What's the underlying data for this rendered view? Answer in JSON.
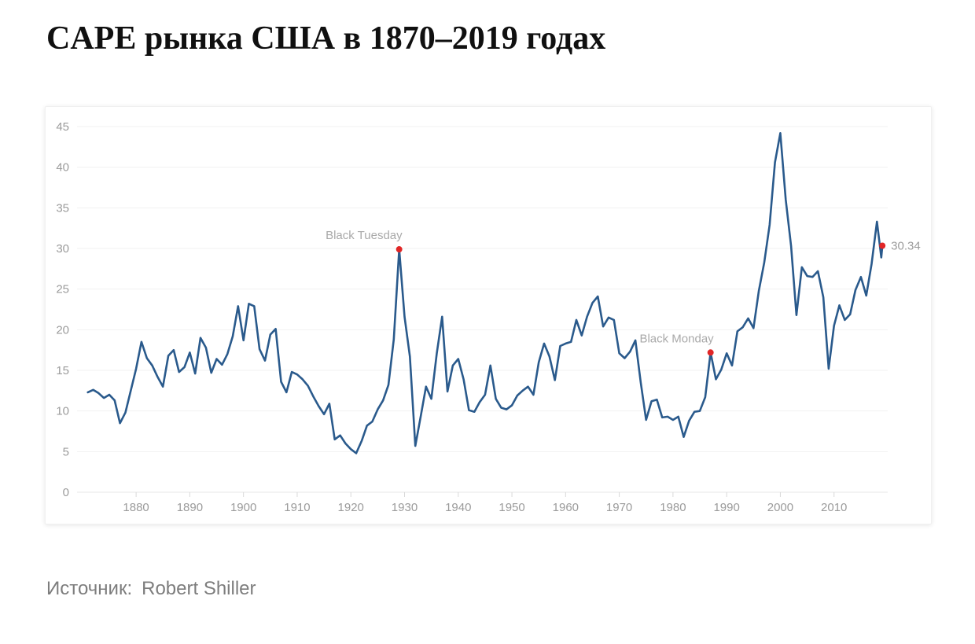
{
  "page": {
    "title": "CAPE рынка США в 1870–2019 годах",
    "source_label": "Источник:",
    "source_value": "Robert Shiller"
  },
  "chart_data": {
    "type": "line",
    "title": "CAPE рынка США в 1870–2019 годах",
    "xlabel": "",
    "ylabel": "",
    "xlim": [
      1869,
      2020
    ],
    "ylim": [
      0,
      45
    ],
    "yticks": [
      0,
      5,
      10,
      15,
      20,
      25,
      30,
      35,
      40,
      45
    ],
    "xticks": [
      1880,
      1890,
      1900,
      1910,
      1920,
      1930,
      1940,
      1950,
      1960,
      1970,
      1980,
      1990,
      2000,
      2010
    ],
    "grid": "horizontal",
    "legend": "none",
    "series_name": "CAPE",
    "x": [
      1871,
      1872,
      1873,
      1874,
      1875,
      1876,
      1877,
      1878,
      1879,
      1880,
      1881,
      1882,
      1883,
      1884,
      1885,
      1886,
      1887,
      1888,
      1889,
      1890,
      1891,
      1892,
      1893,
      1894,
      1895,
      1896,
      1897,
      1898,
      1899,
      1900,
      1901,
      1902,
      1903,
      1904,
      1905,
      1906,
      1907,
      1908,
      1909,
      1910,
      1911,
      1912,
      1913,
      1914,
      1915,
      1916,
      1917,
      1918,
      1919,
      1920,
      1921,
      1922,
      1923,
      1924,
      1925,
      1926,
      1927,
      1928,
      1929,
      1930,
      1931,
      1932,
      1933,
      1934,
      1935,
      1936,
      1937,
      1938,
      1939,
      1940,
      1941,
      1942,
      1943,
      1944,
      1945,
      1946,
      1947,
      1948,
      1949,
      1950,
      1951,
      1952,
      1953,
      1954,
      1955,
      1956,
      1957,
      1958,
      1959,
      1960,
      1961,
      1962,
      1963,
      1964,
      1965,
      1966,
      1967,
      1968,
      1969,
      1970,
      1971,
      1972,
      1973,
      1974,
      1975,
      1976,
      1977,
      1978,
      1979,
      1980,
      1981,
      1982,
      1983,
      1984,
      1985,
      1986,
      1987,
      1988,
      1989,
      1990,
      1991,
      1992,
      1993,
      1994,
      1995,
      1996,
      1997,
      1998,
      1999,
      2000,
      2001,
      2002,
      2003,
      2004,
      2005,
      2006,
      2007,
      2008,
      2009,
      2010,
      2011,
      2012,
      2013,
      2014,
      2015,
      2016,
      2017,
      2018,
      2018.8,
      2019
    ],
    "values": [
      12.3,
      12.6,
      12.2,
      11.6,
      12.0,
      11.3,
      8.5,
      9.8,
      12.5,
      15.2,
      18.5,
      16.5,
      15.6,
      14.2,
      13.0,
      16.8,
      17.5,
      14.8,
      15.4,
      17.2,
      14.6,
      19.0,
      17.8,
      14.7,
      16.4,
      15.7,
      17.0,
      19.2,
      22.9,
      18.7,
      23.2,
      22.9,
      17.6,
      16.2,
      19.4,
      20.1,
      13.6,
      12.3,
      14.8,
      14.5,
      13.9,
      13.1,
      11.8,
      10.6,
      9.6,
      10.9,
      6.5,
      7.0,
      6.0,
      5.3,
      4.8,
      6.3,
      8.2,
      8.7,
      10.2,
      11.3,
      13.2,
      18.8,
      29.9,
      21.6,
      16.7,
      5.7,
      9.3,
      13.0,
      11.5,
      17.1,
      21.6,
      12.4,
      15.6,
      16.4,
      13.9,
      10.1,
      9.9,
      11.1,
      12.0,
      15.6,
      11.5,
      10.4,
      10.2,
      10.7,
      11.9,
      12.5,
      13.0,
      12.0,
      16.0,
      18.3,
      16.7,
      13.8,
      18.0,
      18.3,
      18.5,
      21.2,
      19.3,
      21.6,
      23.3,
      24.1,
      20.4,
      21.5,
      21.2,
      17.1,
      16.5,
      17.3,
      18.7,
      13.5,
      8.9,
      11.2,
      11.4,
      9.2,
      9.3,
      8.9,
      9.3,
      6.8,
      8.8,
      9.9,
      10.0,
      11.7,
      17.2,
      13.9,
      15.1,
      17.1,
      15.6,
      19.8,
      20.3,
      21.4,
      20.2,
      24.8,
      28.3,
      32.9,
      40.6,
      44.2,
      36.0,
      30.3,
      21.8,
      27.7,
      26.6,
      26.5,
      27.2,
      24.0,
      15.2,
      20.5,
      23.0,
      21.2,
      21.9,
      24.9,
      26.5,
      24.2,
      28.1,
      33.3,
      28.9,
      30.34
    ],
    "annotations": [
      {
        "label": "Black Tuesday",
        "year": 1929,
        "value": 29.9
      },
      {
        "label": "Black Monday",
        "year": 1987,
        "value": 17.2
      }
    ],
    "end_label": {
      "text": "30.34",
      "year": 2019,
      "value": 30.34
    },
    "colors": {
      "line": "#2a5a8c",
      "marker": "#e12626",
      "axis_text": "#9b9b9b",
      "annotation_text": "#a9a9a9",
      "grid": "#f1f1f1",
      "grid_zero": "#e7e7e7",
      "x_tick": "#d9d9d9"
    }
  }
}
